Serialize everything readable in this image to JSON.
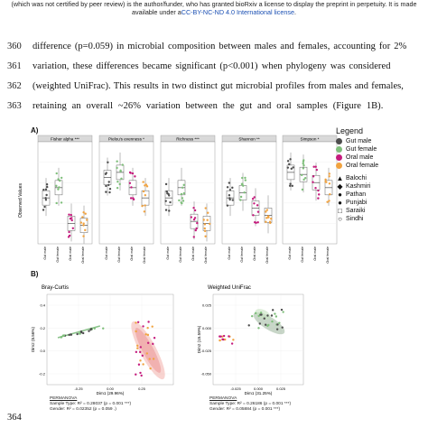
{
  "header": {
    "line1": "(which was not certified by peer review) is the author/funder, who has granted bioRxiv a license to display the preprint in perpetuity. It is made",
    "line2_prefix": "available under a",
    "line2_link": "CC-BY-NC-ND 4.0 International license",
    "line2_suffix": "."
  },
  "text_lines": [
    {
      "num": "360",
      "text": "difference (p=0.059) in microbial composition between males and females, accounting for 2%"
    },
    {
      "num": "361",
      "text": "variation, these differences became significant (p<0.001) when phylogeny was considered"
    },
    {
      "num": "362",
      "text": "(weighted UniFrac). This results in two distinct gut microbial profiles from males and females,"
    },
    {
      "num": "363",
      "text": "retaining an overall ~26% variation between the gut and oral samples (Figure 1B)."
    }
  ],
  "footer_line_num": "364",
  "figure": {
    "panel_a_label": "A)",
    "panel_b_label": "B)",
    "y_label_a": "Observed Values",
    "facets": [
      "Fisher alpha ***",
      "Pielou's evenness *",
      "Richness ***",
      "Shannon **",
      "Simpson *"
    ],
    "x_ticks": [
      "Gut male",
      "Gut female",
      "Oral male",
      "Oral female"
    ],
    "legend": {
      "title": "Legend",
      "groups": [
        {
          "label": "Gut male",
          "color": "#4d4d4d"
        },
        {
          "label": "Gut female",
          "color": "#7fbf7b"
        },
        {
          "label": "Oral male",
          "color": "#c51b7d"
        },
        {
          "label": "Oral female",
          "color": "#f1a340"
        }
      ],
      "ethnicities": [
        {
          "label": "Balochi",
          "glyph": "▲"
        },
        {
          "label": "Kashmiri",
          "glyph": "◆"
        },
        {
          "label": "Pathan",
          "glyph": "●"
        },
        {
          "label": "Punjabi",
          "glyph": "●"
        },
        {
          "label": "Saraiki",
          "glyph": "□"
        },
        {
          "label": "Sindhi",
          "glyph": "○"
        }
      ]
    },
    "bray": {
      "title": "Bray-Curtis",
      "xlabel": "Dim1 (29.96%)",
      "ylabel": "Dim2 (8.56%)",
      "xticks": [
        "-0.25",
        "0.00",
        "0.25"
      ],
      "yticks": [
        "0.4",
        "0.2",
        "0.0",
        "-0.2"
      ],
      "permanova": "PERMANOVA",
      "sample_type": "Sample Type: R² = 0.28037 (p = 0.001 ***)",
      "gender": "Gender: R² = 0.02352 (p = 0.059 .)"
    },
    "unifrac": {
      "title": "Weighted UniFrac",
      "xlabel": "Dim1 (31.25%)",
      "ylabel": "Dim2 (15.59%)",
      "xticks": [
        "-0.025",
        "0.000",
        "0.025"
      ],
      "yticks": [
        "0.025",
        "0.000",
        "-0.025",
        "-0.050"
      ],
      "permanova": "PERMANOVA",
      "sample_type": "Sample Type: R² = 0.26186 (p = 0.001 ***)",
      "gender": "Gender: R² = 0.05884 (p = 0.001 ***)"
    }
  }
}
